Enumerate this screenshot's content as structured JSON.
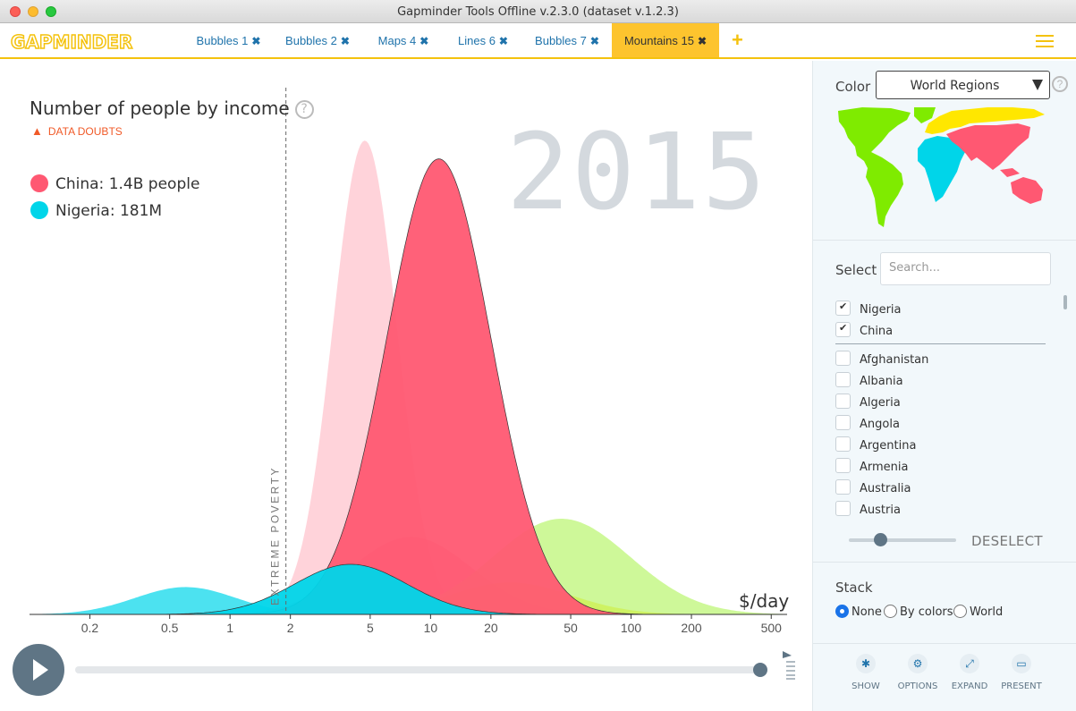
{
  "window": {
    "title": "Gapminder Tools Offline v.2.3.0 (dataset v.1.2.3)"
  },
  "header": {
    "logo": "GAPMINDER",
    "tabs": [
      {
        "label": "Bubbles 1"
      },
      {
        "label": "Bubbles 2"
      },
      {
        "label": "Maps 4"
      },
      {
        "label": "Lines 6"
      },
      {
        "label": "Bubbles 7"
      },
      {
        "label": "Mountains 15"
      }
    ],
    "active_tab": "Mountains 15",
    "add_tab_glyph": "+",
    "close_glyph": "✖"
  },
  "chart": {
    "title": "Number of people by income",
    "data_doubts": "DATA DOUBTS",
    "year": "2015",
    "unit_label": "$/day",
    "poverty_label": "EXTREME POVERTY",
    "legend": [
      {
        "label": "China: 1.4B people",
        "color": "#ff5872"
      },
      {
        "label": "Nigeria: 181M",
        "color": "#00d5e9"
      }
    ]
  },
  "chart_data": {
    "type": "area",
    "xscale": "log",
    "xlabel": "$/day",
    "xticks": [
      0.2,
      0.5,
      1,
      2,
      5,
      10,
      20,
      50,
      100,
      200,
      500
    ],
    "xlim": [
      0.1,
      600
    ],
    "poverty_line": 1.9,
    "year": "2015",
    "series": [
      {
        "name": "China: 1.4B people",
        "color": "#ff5872",
        "peak_x": 11,
        "spread": 0.26,
        "relative_height": 1.0
      },
      {
        "name": "Nigeria: 181M",
        "color": "#00d5e9",
        "peak_x": 4,
        "spread": 0.28,
        "relative_height": 0.11
      },
      {
        "color": "#ffc0cb",
        "peak_x": 4.7,
        "spread": 0.16,
        "relative_height": 1.04
      },
      {
        "color": "#b9f56e",
        "peak_x": 45,
        "spread": 0.34,
        "relative_height": 0.21
      },
      {
        "color": "#00d5e9",
        "peak_x": 0.6,
        "spread": 0.25,
        "relative_height": 0.06
      },
      {
        "color": "#ffe400",
        "peak_x": 25,
        "spread": 0.3,
        "relative_height": 0.07
      },
      {
        "color": "#ff8aa0",
        "peak_x": 8,
        "spread": 0.3,
        "relative_height": 0.17
      }
    ]
  },
  "controls": {
    "play_state": "paused",
    "timeline_position": 1.0
  },
  "sidebar": {
    "color_label": "Color",
    "color_value": "World Regions",
    "help_glyph": "?",
    "map_colors": {
      "americas": "#7feb00",
      "europe": "#ffe700",
      "africa": "#00d5e9",
      "asia": "#ff5872"
    },
    "select_label": "Select",
    "search_placeholder": "Search...",
    "selected_countries": [
      {
        "label": "Nigeria",
        "checked": true
      },
      {
        "label": "China",
        "checked": true
      }
    ],
    "countries": [
      {
        "label": "Afghanistan",
        "checked": false
      },
      {
        "label": "Albania",
        "checked": false
      },
      {
        "label": "Algeria",
        "checked": false
      },
      {
        "label": "Angola",
        "checked": false
      },
      {
        "label": "Argentina",
        "checked": false
      },
      {
        "label": "Armenia",
        "checked": false
      },
      {
        "label": "Australia",
        "checked": false
      },
      {
        "label": "Austria",
        "checked": false
      }
    ],
    "opacity": 0.3,
    "deselect_label": "DESELECT",
    "stack_label": "Stack",
    "stack_options": [
      {
        "label": "None",
        "selected": true
      },
      {
        "label": "By colors",
        "selected": false
      },
      {
        "label": "World",
        "selected": false
      }
    ],
    "tools": [
      {
        "label": "SHOW",
        "icon": "asterisk-icon"
      },
      {
        "label": "OPTIONS",
        "icon": "gear-icon"
      },
      {
        "label": "EXPAND",
        "icon": "expand-icon"
      },
      {
        "label": "PRESENT",
        "icon": "present-icon"
      }
    ]
  }
}
